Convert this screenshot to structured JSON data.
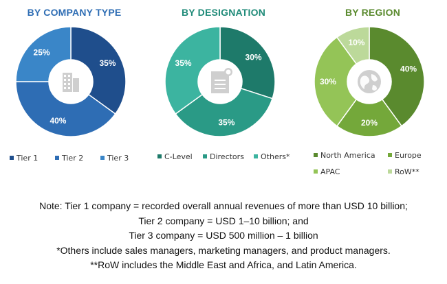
{
  "chart_data": [
    {
      "type": "pie",
      "title": "BY COMPANY TYPE",
      "categories": [
        "Tier 1",
        "Tier 2",
        "Tier 3"
      ],
      "values": [
        35,
        40,
        25
      ],
      "labels": [
        "35%",
        "40%",
        "25%"
      ],
      "colors": [
        "#1f4e8c",
        "#2e6db4",
        "#3a86c8"
      ],
      "title_color": "#2e6db4",
      "legend_position": "bottom",
      "center_icon": "building-icon"
    },
    {
      "type": "pie",
      "title": "BY DESIGNATION",
      "categories": [
        "C-Level",
        "Directors",
        "Others*"
      ],
      "values": [
        30,
        35,
        35
      ],
      "labels": [
        "30%",
        "35%",
        "35%"
      ],
      "colors": [
        "#1e7a6a",
        "#2a9a86",
        "#3cb4a0"
      ],
      "title_color": "#1e8a78",
      "legend_position": "bottom",
      "center_icon": "document-icon"
    },
    {
      "type": "pie",
      "title": "BY REGION",
      "categories": [
        "North America",
        "Europe",
        "APAC",
        "RoW**"
      ],
      "values": [
        40,
        20,
        30,
        10
      ],
      "labels": [
        "40%",
        "20%",
        "30%",
        "10%"
      ],
      "colors": [
        "#5a8a2e",
        "#74a83a",
        "#94c457",
        "#bcd99a"
      ],
      "title_color": "#5a8a2e",
      "legend_position": "bottom",
      "center_icon": "globe-icon"
    }
  ],
  "notes": [
    "Note: Tier 1 company = recorded overall annual revenues of more than USD 10 billion;",
    "Tier 2 company = USD 1–10 billion; and",
    "Tier 3 company = USD 500 million – 1 billion",
    "*Others include sales managers, marketing managers, and product managers.",
    "**RoW includes the Middle East and Africa, and Latin America."
  ]
}
